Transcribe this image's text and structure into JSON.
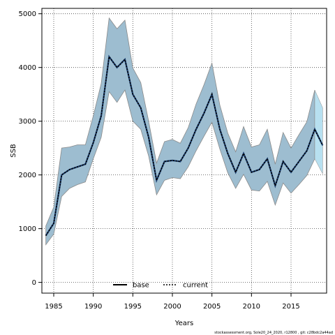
{
  "chart_data": {
    "type": "line",
    "xlabel": "Years",
    "ylabel": "SSB",
    "xlim": [
      1983.5,
      2019.5
    ],
    "ylim": [
      -200,
      5100
    ],
    "xticks": [
      1985,
      1990,
      1995,
      2000,
      2005,
      2010,
      2015
    ],
    "yticks": [
      0,
      1000,
      2000,
      3000,
      4000,
      5000
    ],
    "grid": true,
    "legend_position": "bottom-center",
    "legend": [
      "base",
      "current"
    ],
    "footer": "stockassessment.org, Sole20_24_2020, r12800 , git: c28bdc2a44ad",
    "x": [
      1984,
      1985,
      1986,
      1987,
      1988,
      1989,
      1990,
      1991,
      1992,
      1993,
      1994,
      1995,
      1996,
      1997,
      1998,
      1999,
      2000,
      2001,
      2002,
      2003,
      2004,
      2005,
      2006,
      2007,
      2008,
      2009,
      2010,
      2011,
      2012,
      2013,
      2014,
      2015,
      2016,
      2017,
      2018,
      2019
    ],
    "series": [
      {
        "name": "current",
        "color": "#000000",
        "line_style": "dotted",
        "values": [
          870,
          1100,
          2000,
          2100,
          2150,
          2200,
          2600,
          3100,
          4200,
          4000,
          4150,
          3500,
          3250,
          2700,
          1900,
          2250,
          2270,
          2250,
          2500,
          2850,
          3150,
          3500,
          2850,
          2400,
          2050,
          2400,
          2050,
          2100,
          2300,
          1800,
          2250,
          2050,
          2250,
          2450,
          2850,
          2550
        ],
        "lower": [
          700,
          900,
          1600,
          1750,
          1820,
          1870,
          2300,
          2700,
          3550,
          3350,
          3580,
          3000,
          2850,
          2350,
          1630,
          1900,
          1950,
          1930,
          2150,
          2450,
          2720,
          2980,
          2480,
          2040,
          1750,
          2010,
          1720,
          1700,
          1880,
          1440,
          1850,
          1660,
          1820,
          1990,
          2300,
          2020
        ],
        "upper": [
          1050,
          1400,
          2500,
          2520,
          2560,
          2560,
          3100,
          3700,
          4920,
          4720,
          4880,
          3990,
          3720,
          3000,
          2220,
          2620,
          2660,
          2590,
          2880,
          3320,
          3680,
          4080,
          3300,
          2780,
          2430,
          2900,
          2520,
          2560,
          2850,
          2200,
          2790,
          2500,
          2750,
          2990,
          3580,
          3250
        ]
      }
    ],
    "band_color": "#9dbdd0",
    "band_edge_color": "#8a8a8a",
    "projection_band_color": "#b7e0f0",
    "projection_from": 2018
  }
}
